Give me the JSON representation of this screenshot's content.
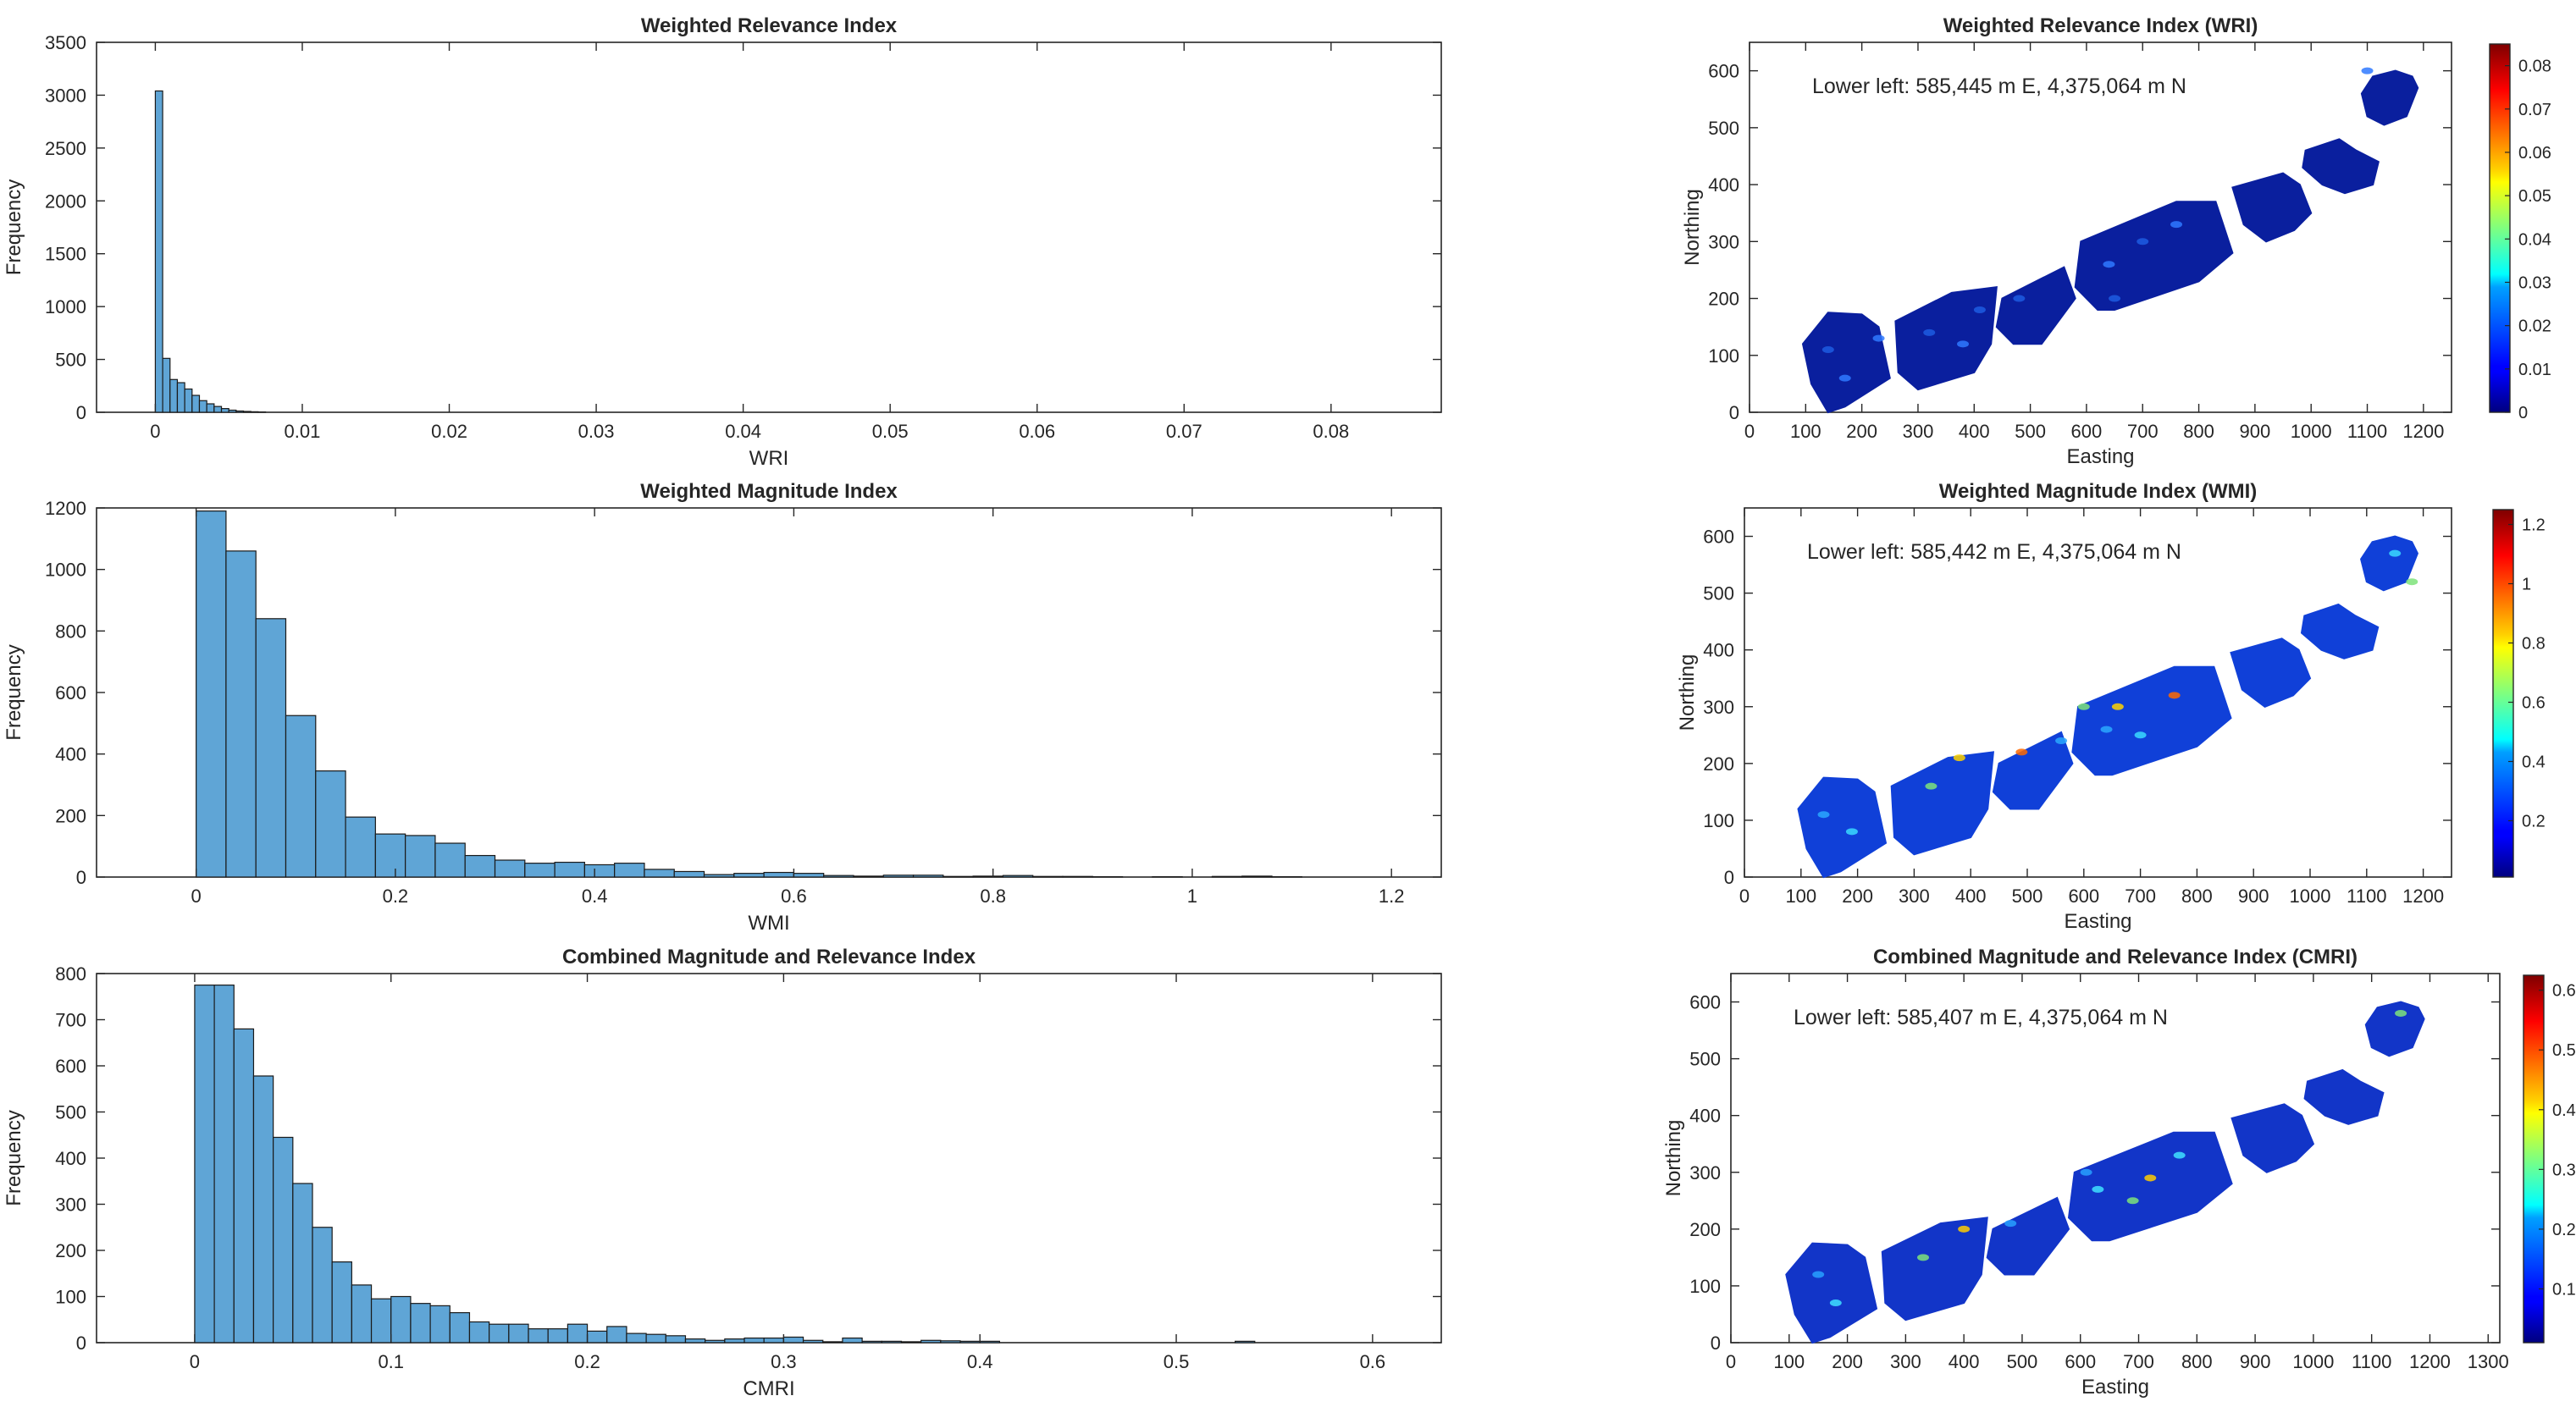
{
  "chart_data": [
    {
      "type": "bar",
      "subtype": "histogram",
      "title": "Weighted Relevance Index",
      "xlabel": "WRI",
      "ylabel": "Frequency",
      "xlim": [
        -0.004,
        0.0875
      ],
      "ylim": [
        0,
        3500
      ],
      "xticks": [
        "0",
        "0.01",
        "0.02",
        "0.03",
        "0.04",
        "0.05",
        "0.06",
        "0.07",
        "0.08"
      ],
      "yticks": [
        "0",
        "500",
        "1000",
        "1500",
        "2000",
        "2500",
        "3000",
        "3500"
      ],
      "bin_start": 0,
      "bin_width": 0.0005,
      "values": [
        3040,
        510,
        310,
        280,
        220,
        160,
        110,
        80,
        55,
        35,
        20,
        12,
        8,
        5,
        3
      ],
      "bar_color": "#5fa5d6"
    },
    {
      "type": "bar",
      "subtype": "histogram",
      "title": "Weighted Magnitude Index",
      "xlabel": "WMI",
      "ylabel": "Frequency",
      "xlim": [
        -0.1,
        1.25
      ],
      "ylim": [
        0,
        1200
      ],
      "xticks": [
        "0",
        "0.2",
        "0.4",
        "0.6",
        "0.8",
        "1",
        "1.2"
      ],
      "yticks": [
        "0",
        "200",
        "400",
        "600",
        "800",
        "1000",
        "1200"
      ],
      "bin_start": 0,
      "bin_width": 0.03,
      "values": [
        1190,
        1060,
        840,
        525,
        345,
        195,
        140,
        135,
        110,
        70,
        55,
        45,
        48,
        40,
        45,
        25,
        18,
        8,
        12,
        15,
        12,
        5,
        3,
        6,
        6,
        2,
        3,
        5,
        2,
        2,
        1,
        0,
        1,
        0,
        2,
        3,
        1,
        0,
        0,
        0,
        0
      ],
      "bar_color": "#5fa5d6"
    },
    {
      "type": "bar",
      "subtype": "histogram",
      "title": "Combined Magnitude and Relevance Index",
      "xlabel": "CMRI",
      "ylabel": "Frequency",
      "xlim": [
        -0.05,
        0.635
      ],
      "ylim": [
        0,
        800
      ],
      "xticks": [
        "0",
        "0.1",
        "0.2",
        "0.3",
        "0.4",
        "0.5",
        "0.6"
      ],
      "yticks": [
        "0",
        "100",
        "200",
        "300",
        "400",
        "500",
        "600",
        "700",
        "800"
      ],
      "bin_start": 0,
      "bin_width": 0.01,
      "values": [
        775,
        775,
        680,
        578,
        445,
        345,
        250,
        175,
        125,
        95,
        100,
        85,
        80,
        65,
        45,
        40,
        40,
        30,
        30,
        40,
        25,
        35,
        20,
        18,
        15,
        8,
        5,
        8,
        10,
        10,
        12,
        5,
        2,
        10,
        3,
        3,
        2,
        5,
        4,
        3,
        3,
        0,
        0,
        0,
        0,
        0,
        0,
        0,
        0,
        0,
        0,
        0,
        0,
        3
      ],
      "bar_color": "#5fa5d6"
    },
    {
      "type": "heatmap",
      "title": "Weighted Relevance Index (WRI)",
      "xlabel": "Easting",
      "ylabel": "Northing",
      "annotation": "Lower left: 585,445 m E, 4,375,064 m N",
      "xlim": [
        0,
        1250
      ],
      "ylim": [
        0,
        650
      ],
      "xticks": [
        "0",
        "100",
        "200",
        "300",
        "400",
        "500",
        "600",
        "700",
        "800",
        "900",
        "1000",
        "1100",
        "1200"
      ],
      "yticks": [
        "0",
        "100",
        "200",
        "300",
        "400",
        "500",
        "600"
      ],
      "colorbar_ticks": [
        "0",
        "0.01",
        "0.02",
        "0.03",
        "0.04",
        "0.05",
        "0.06",
        "0.07",
        "0.08"
      ],
      "colorbar_range": [
        0,
        0.085
      ],
      "colormap": "jet",
      "dominant_color": "#0a1f9e"
    },
    {
      "type": "heatmap",
      "title": "Weighted Magnitude Index (WMI)",
      "xlabel": "Easting",
      "ylabel": "Northing",
      "annotation": "Lower left: 585,442 m E, 4,375,064 m N",
      "xlim": [
        0,
        1250
      ],
      "ylim": [
        0,
        650
      ],
      "xticks": [
        "0",
        "100",
        "200",
        "300",
        "400",
        "500",
        "600",
        "700",
        "800",
        "900",
        "1000",
        "1100",
        "1200"
      ],
      "yticks": [
        "0",
        "100",
        "200",
        "300",
        "400",
        "500",
        "600"
      ],
      "colorbar_ticks": [
        "0.2",
        "0.4",
        "0.6",
        "0.8",
        "1",
        "1.2"
      ],
      "colorbar_range": [
        0.01,
        1.25
      ],
      "colormap": "jet",
      "dominant_color": "#1040d8"
    },
    {
      "type": "heatmap",
      "title": "Combined Magnitude and Relevance Index (CMRI)",
      "xlabel": "Easting",
      "ylabel": "Northing",
      "annotation": "Lower left: 585,407 m E, 4,375,064 m N",
      "xlim": [
        0,
        1320
      ],
      "ylim": [
        0,
        650
      ],
      "xticks": [
        "0",
        "100",
        "200",
        "300",
        "400",
        "500",
        "600",
        "700",
        "800",
        "900",
        "1000",
        "1100",
        "1200",
        "1300"
      ],
      "yticks": [
        "0",
        "100",
        "200",
        "300",
        "400",
        "500",
        "600"
      ],
      "colorbar_ticks": [
        "0.1",
        "0.2",
        "0.3",
        "0.4",
        "0.5",
        "0.6"
      ],
      "colorbar_range": [
        0.01,
        0.625
      ],
      "colormap": "jet",
      "dominant_color": "#1235c8"
    }
  ]
}
